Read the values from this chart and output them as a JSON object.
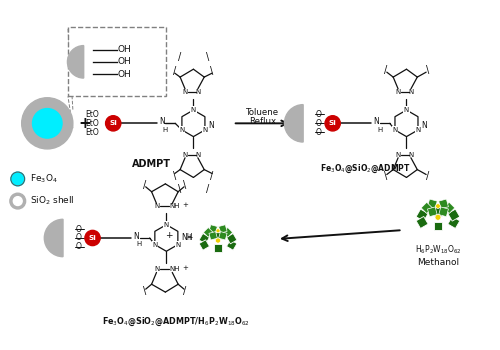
{
  "bg_color": "#ffffff",
  "cyan_color": "#00eeff",
  "gray_color": "#b0b0b0",
  "gray_light": "#d0d0d0",
  "red_color": "#cc0000",
  "green_color": "#1a6b10",
  "green_light": "#2d8a20",
  "yellow_color": "#f0d000",
  "dark_color": "#111111",
  "legend_fe3o4": "Fe$_3$O$_4$",
  "legend_sio2": "SiO$_2$ shell",
  "label_admpt": "ADMPT",
  "label_toluene": "Toluene",
  "label_reflux": "Reflux",
  "label_methanol": "Methanol",
  "label_hpa": "H$_6$P$_2$W$_{18}$O$_{62}$",
  "label_fe3o4_admpt": "Fe$_3$O$_4$@SiO$_2$@ADMPT",
  "label_fe3o4_hpa": "Fe$_3$O$_4$@SiO$_2$@ADMPT/H$_6$P$_2$W$_{18}$O$_{62}$",
  "figsize": [
    5.0,
    3.5
  ],
  "dpi": 100,
  "xlim": [
    0,
    10
  ],
  "ylim": [
    0,
    7
  ]
}
